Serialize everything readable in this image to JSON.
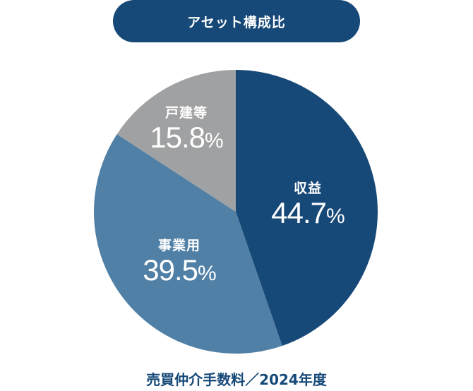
{
  "header": {
    "title": "アセット構成比"
  },
  "caption": "売買仲介手数料／2024年度",
  "chart_data": {
    "type": "pie",
    "title": "アセット構成比",
    "subtitle": "売買仲介手数料／2024年度",
    "categories": [
      "収益",
      "事業用",
      "戸建等"
    ],
    "values": [
      44.7,
      39.5,
      15.8
    ],
    "unit": "%",
    "colors": [
      "#164878",
      "#5080A6",
      "#A0A1A2"
    ],
    "start_angle_deg": 0,
    "direction": "clockwise",
    "labels": [
      {
        "name": "収益",
        "value": "44.7",
        "unit": "%"
      },
      {
        "name": "事業用",
        "value": "39.5",
        "unit": "%"
      },
      {
        "name": "戸建等",
        "value": "15.8",
        "unit": "%"
      }
    ]
  }
}
